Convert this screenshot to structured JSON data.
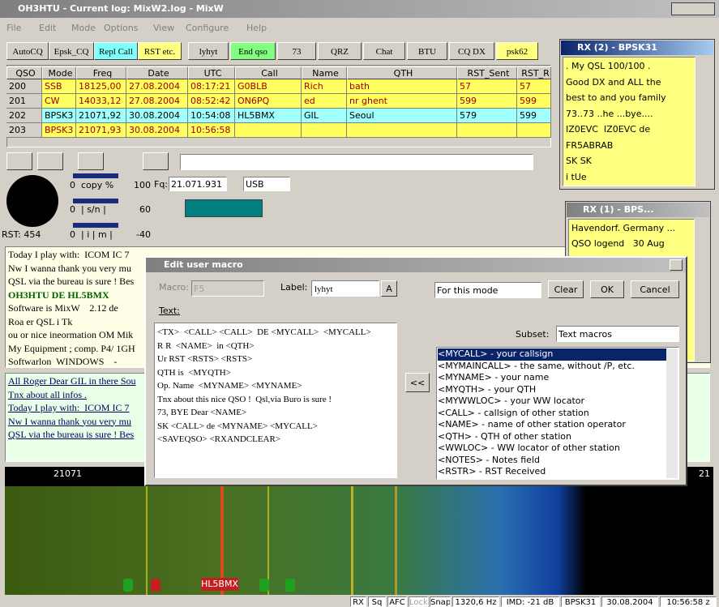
{
  "window": {
    "title": "OH3HTU - Current log: MixW2.log - MixW",
    "menu": [
      "File",
      "Edit",
      "Mode",
      "Options",
      "View",
      "Configure",
      "Help"
    ]
  },
  "toolbar": {
    "buttons": [
      "AutoCQ",
      "Epsk_CQ",
      "Repl Call",
      "RST etc.",
      "lyhyt",
      "End qso",
      "73",
      "QRZ",
      "Chat",
      "BTU",
      "CQ DX",
      "psk62"
    ]
  },
  "log_table": {
    "columns": [
      "QSO",
      "Mode",
      "Freq",
      "Date",
      "UTC",
      "Call",
      "Name",
      "QTH",
      "RST_Sent",
      "RST_R"
    ],
    "rows": [
      [
        "200",
        "SSB",
        "18125,00",
        "27.08.2004",
        "08:17:21",
        "G0BLB",
        "Rich",
        "bath",
        "57",
        "57"
      ],
      [
        "201",
        "CW",
        "14033,12",
        "27.08.2004",
        "08:52:42",
        "ON6PQ",
        "ed",
        "nr ghent",
        "599",
        "599"
      ],
      [
        "202",
        "BPSK3",
        "21071,92",
        "30.08.2004",
        "10:54:08",
        "HL5BMX",
        "GIL",
        "Seoul",
        "579",
        "599"
      ],
      [
        "203",
        "BPSK3",
        "21071,93",
        "30.08.2004",
        "10:56:58",
        "",
        "",
        "",
        "",
        ""
      ]
    ]
  },
  "gauges": {
    "copy": [
      "0",
      "copy %",
      "100"
    ],
    "sn": [
      "0",
      "| s/n |",
      "60"
    ],
    "imd": [
      "0",
      "| i | m |",
      "-40"
    ],
    "rst": "RST: 454",
    "freq_label": "Fq:",
    "freq": "21.071.931",
    "mode": "USB"
  },
  "rx2": {
    "title": "RX (2) - BPSK31",
    "lines": [
      ". My QSL 100/100 .",
      "Good DX and ALL the",
      "best to and you family",
      "73..73 ..he ...bye....",
      "IZ0EVC  IZ0EVC de",
      "FR5ABRAB",
      "SK SK",
      "i tUe"
    ]
  },
  "rx1": {
    "title": "RX (1) - BPS...",
    "lines": [
      "Havendorf. Germany ...",
      "QSO logend   30 Aug"
    ]
  },
  "receive_text": {
    "lines": [
      "Today I play with:  ICOM IC 7",
      "Nw I wanna thank you very mu",
      "QSL via the bureau is sure ! Bes",
      "OH3HTU DE HL5BMX",
      "Software is MixW    2.12 de",
      "Roa er QSL i Tk",
      "ou or nice ineormation OM Mik",
      "My Equipment ; comp. P4/ 1GH",
      "Softwarlon  WINDOWS    -"
    ]
  },
  "transmit_text": {
    "lines": [
      "All Roger Dear GIL in there Sou",
      "Tnx about all infos .",
      "Today I play with:  ICOM IC 7",
      "Nw I wanna thank you very mu",
      "QSL via the bureau is sure ! Bes"
    ]
  },
  "dialog": {
    "title": "Edit user macro",
    "macro_label": "Macro:",
    "macro": "F5",
    "label_label": "Label:",
    "label": "lyhyt",
    "font_button": "A",
    "scope": "For this mode",
    "clear": "Clear",
    "ok": "OK",
    "cancel": "Cancel",
    "text_label": "Text:",
    "insert": "<<",
    "subset_label": "Subset:",
    "subset": "Text macros",
    "text": [
      "<TX>  <CALL> <CALL>  DE <MYCALL>  <MYCALL>",
      "R R  <NAME>  in <QTH>",
      "Ur RST <RSTS> <RSTS>",
      "QTH is  <MYQTH>",
      "Op. Name  <MYNAME> <MYNAME>",
      "Tnx about this nice QSO !  Qsl,via Buro is sure !",
      "73, BYE Dear <NAME>",
      "SK <CALL> de <MYNAME> <MYCALL>",
      "<SAVEQSO> <RXANDCLEAR>"
    ],
    "macros": [
      "<MYCALL> - your callsign",
      "<MYMAINCALL> - the same, without /P, etc.",
      "<MYNAME> - your name",
      "<MYQTH> - your QTH",
      "<MYWWLOC> - your WW locator",
      "<CALL> - callsign of other station",
      "<NAME> - name of other station operator",
      "<QTH> - QTH of other station",
      "<WWLOC> - WW locator of other station",
      "<NOTES> - Notes field",
      "<RSTR> - RST Received"
    ]
  },
  "waterfall": {
    "scale_left": "21071",
    "scale_right": "21",
    "callsign": "HL5BMX"
  },
  "status_bar": [
    "RX",
    "Sq",
    "AFC",
    "Lock",
    "Snap",
    "1320,6 Hz",
    "IMD: -21 dB",
    "BPSK31",
    "30.08.2004",
    "10:56:58 z"
  ]
}
